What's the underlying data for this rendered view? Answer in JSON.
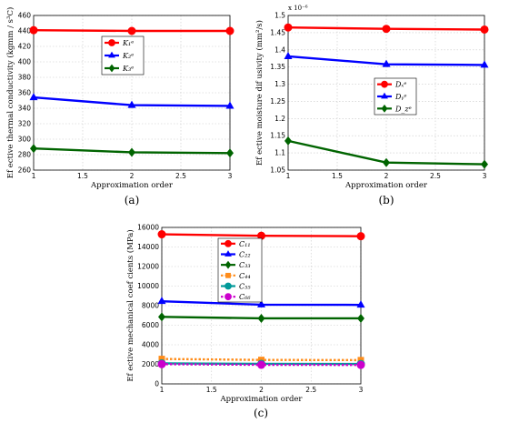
{
  "chart_data": [
    {
      "type": "line",
      "caption": "(a)",
      "xlabel": "Approximation order",
      "ylabel": "Ef ective thermal conductivity",
      "ylabel_unit": "(kgmm / s³C)",
      "x": [
        1,
        2,
        3
      ],
      "xlim": [
        1,
        3
      ],
      "ylim": [
        260,
        460
      ],
      "xticks": [
        "1",
        "1.5",
        "2",
        "2.5",
        "3"
      ],
      "yticks": [
        "260",
        "280",
        "300",
        "320",
        "340",
        "360",
        "380",
        "400",
        "420",
        "440",
        "460"
      ],
      "legend_position": "top-center",
      "series": [
        {
          "name": "K₁ᵉ",
          "values": [
            441,
            440,
            440
          ],
          "color": "#ff0000",
          "marker": "circle",
          "dash": "solid"
        },
        {
          "name": "K₂ᵉ",
          "values": [
            354,
            344,
            343
          ],
          "color": "#0000ff",
          "marker": "triangle",
          "dash": "solid"
        },
        {
          "name": "K₃ᵉ",
          "values": [
            288,
            283,
            282
          ],
          "color": "#006400",
          "marker": "diamond",
          "dash": "solid"
        }
      ]
    },
    {
      "type": "line",
      "caption": "(b)",
      "xlabel": "Approximation order",
      "ylabel": "Ef ective moisture dif usivity",
      "ylabel_unit": "(mm²/s)",
      "exponent_label": "x 10⁻⁶",
      "x": [
        1,
        2,
        3
      ],
      "xlim": [
        1,
        3
      ],
      "ylim": [
        1.05,
        1.5
      ],
      "xticks": [
        "1",
        "1.5",
        "2",
        "2.5",
        "3"
      ],
      "yticks": [
        "1.05",
        "1.1",
        "1.15",
        "1.2",
        "1.25",
        "1.3",
        "1.35",
        "1.4",
        "1.45",
        "1.5"
      ],
      "legend_position": "middle-right",
      "series": [
        {
          "name": "Dₓᵉ",
          "values": [
            1.465,
            1.461,
            1.459
          ],
          "color": "#ff0000",
          "marker": "circle",
          "dash": "solid"
        },
        {
          "name": "Dᵧᵉ",
          "values": [
            1.381,
            1.358,
            1.356
          ],
          "color": "#0000ff",
          "marker": "triangle",
          "dash": "solid"
        },
        {
          "name": "D_zᵉ",
          "values": [
            1.135,
            1.072,
            1.067
          ],
          "color": "#006400",
          "marker": "diamond",
          "dash": "solid"
        }
      ]
    },
    {
      "type": "line",
      "caption": "(c)",
      "xlabel": "Approximation order",
      "ylabel": "Ef ective mechanical coef cients",
      "ylabel_unit": "(MPa)",
      "x": [
        1,
        2,
        3
      ],
      "xlim": [
        1,
        3
      ],
      "ylim": [
        0,
        16000
      ],
      "xticks": [
        "1",
        "1.5",
        "2",
        "2.5",
        "3"
      ],
      "yticks": [
        "0",
        "2000",
        "4000",
        "6000",
        "8000",
        "10000",
        "12000",
        "14000",
        "16000"
      ],
      "legend_position": "top-center",
      "series": [
        {
          "name": "C₁₁",
          "values": [
            15300,
            15150,
            15100
          ],
          "color": "#ff0000",
          "marker": "circle",
          "dash": "solid"
        },
        {
          "name": "C₂₂",
          "values": [
            8450,
            8100,
            8080
          ],
          "color": "#0000ff",
          "marker": "triangle",
          "dash": "solid"
        },
        {
          "name": "C₃₃",
          "values": [
            6850,
            6700,
            6700
          ],
          "color": "#006400",
          "marker": "diamond",
          "dash": "solid"
        },
        {
          "name": "C₄₄",
          "values": [
            2550,
            2450,
            2430
          ],
          "color": "#ff8c1a",
          "marker": "square",
          "dash": "dotted"
        },
        {
          "name": "C₅₅",
          "values": [
            2100,
            2050,
            2040
          ],
          "color": "#009999",
          "marker": "circle",
          "dash": "solid"
        },
        {
          "name": "C₆₆",
          "values": [
            2020,
            1950,
            1940
          ],
          "color": "#cc00cc",
          "marker": "circle",
          "dash": "dotted"
        }
      ]
    }
  ]
}
